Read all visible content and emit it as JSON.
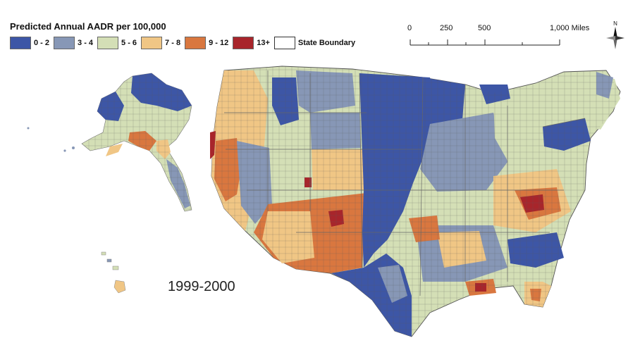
{
  "legend": {
    "title": "Predicted Annual AADR per 100,000",
    "classes": [
      {
        "label": "0 - 2",
        "color": "#3d56a6"
      },
      {
        "label": "3 - 4",
        "color": "#8797b6"
      },
      {
        "label": "5 - 6",
        "color": "#d4dfb6"
      },
      {
        "label": "7 - 8",
        "color": "#f0c685"
      },
      {
        "label": "9 - 12",
        "color": "#d9773f"
      },
      {
        "label": "13+",
        "color": "#a8252b"
      }
    ],
    "boundary_label": "State Boundary"
  },
  "scale": {
    "ticks": [
      "0",
      "250",
      "500",
      "1,000 Miles"
    ]
  },
  "north": "N",
  "period": "1999-2000"
}
